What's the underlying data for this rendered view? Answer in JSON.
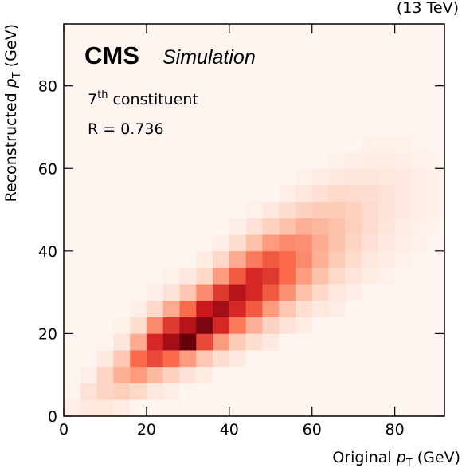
{
  "chart_data": {
    "type": "heatmap",
    "energy_label": "(13 TeV)",
    "experiment": "CMS",
    "experiment_note": "Simulation",
    "annotations": [
      {
        "base": "7",
        "sup": "th",
        "rest": " constituent"
      },
      {
        "base": "R = 0.736"
      }
    ],
    "x_label": {
      "pre": "Original ",
      "var": "p",
      "sub": "T",
      "post": " (GeV)"
    },
    "y_label": {
      "pre": "Reconstructed ",
      "var": "p",
      "sub": "T",
      "post": " (GeV)"
    },
    "xlim": [
      0,
      92
    ],
    "ylim": [
      0,
      95
    ],
    "xticks": [
      0,
      20,
      40,
      60,
      80
    ],
    "yticks": [
      0,
      20,
      40,
      60,
      80
    ],
    "colormap": [
      "#fff5f0",
      "#fcbba1",
      "#fb6a4a",
      "#cb181d",
      "#67000d"
    ],
    "x_bins": [
      0,
      4,
      8,
      12,
      16,
      20,
      24,
      28,
      32,
      36,
      40,
      44,
      48,
      52,
      56,
      60,
      64,
      68,
      72,
      76,
      80,
      84,
      88,
      92
    ],
    "y_bins": [
      0,
      4,
      8,
      12,
      16,
      20,
      24,
      28,
      32,
      36,
      40,
      44,
      48,
      52,
      56,
      60,
      64,
      68
    ],
    "z": [
      [
        3,
        5,
        6,
        4,
        0,
        0,
        0,
        0,
        0,
        0,
        0,
        0,
        0,
        0,
        0,
        0,
        0,
        0,
        0,
        0,
        0,
        0,
        0
      ],
      [
        1,
        8,
        14,
        16,
        12,
        6,
        3,
        0,
        0,
        0,
        0,
        0,
        0,
        0,
        0,
        0,
        0,
        0,
        0,
        0,
        0,
        0,
        0
      ],
      [
        0,
        3,
        14,
        28,
        35,
        25,
        15,
        8,
        4,
        0,
        0,
        0,
        0,
        0,
        0,
        0,
        0,
        0,
        0,
        0,
        0,
        0,
        0
      ],
      [
        0,
        0,
        5,
        20,
        50,
        60,
        50,
        35,
        20,
        10,
        5,
        0,
        0,
        0,
        0,
        0,
        0,
        0,
        0,
        0,
        0,
        0,
        0
      ],
      [
        0,
        0,
        1,
        7,
        30,
        70,
        85,
        100,
        60,
        35,
        18,
        10,
        5,
        0,
        0,
        0,
        0,
        0,
        0,
        0,
        0,
        0,
        0
      ],
      [
        0,
        0,
        0,
        2,
        10,
        40,
        65,
        80,
        95,
        70,
        45,
        28,
        15,
        8,
        4,
        0,
        0,
        0,
        0,
        0,
        0,
        0,
        0
      ],
      [
        0,
        0,
        0,
        0,
        3,
        12,
        30,
        50,
        75,
        85,
        70,
        55,
        35,
        20,
        10,
        6,
        3,
        0,
        0,
        0,
        0,
        0,
        0
      ],
      [
        0,
        0,
        0,
        0,
        0,
        3,
        8,
        20,
        40,
        65,
        80,
        70,
        55,
        38,
        22,
        12,
        6,
        3,
        0,
        0,
        0,
        0,
        0
      ],
      [
        0,
        0,
        0,
        0,
        0,
        0,
        2,
        5,
        12,
        35,
        55,
        70,
        65,
        50,
        35,
        22,
        12,
        7,
        4,
        2,
        0,
        0,
        0
      ],
      [
        0,
        0,
        0,
        0,
        0,
        0,
        0,
        0,
        4,
        12,
        30,
        45,
        55,
        50,
        40,
        28,
        18,
        11,
        6,
        4,
        2,
        0,
        0
      ],
      [
        0,
        0,
        0,
        0,
        0,
        0,
        0,
        0,
        0,
        3,
        10,
        22,
        35,
        40,
        38,
        30,
        22,
        14,
        9,
        5,
        3,
        2,
        0
      ],
      [
        0,
        0,
        0,
        0,
        0,
        0,
        0,
        0,
        0,
        0,
        3,
        8,
        15,
        22,
        28,
        26,
        22,
        16,
        11,
        7,
        4,
        2,
        1
      ],
      [
        0,
        0,
        0,
        0,
        0,
        0,
        0,
        0,
        0,
        0,
        0,
        2,
        5,
        10,
        15,
        18,
        18,
        15,
        11,
        8,
        5,
        3,
        2
      ],
      [
        0,
        0,
        0,
        0,
        0,
        0,
        0,
        0,
        0,
        0,
        0,
        0,
        0,
        3,
        6,
        9,
        12,
        11,
        10,
        8,
        5,
        3,
        2
      ],
      [
        0,
        0,
        0,
        0,
        0,
        0,
        0,
        0,
        0,
        0,
        0,
        0,
        0,
        0,
        2,
        4,
        6,
        7,
        7,
        6,
        5,
        3,
        2
      ],
      [
        0,
        0,
        0,
        0,
        0,
        0,
        0,
        0,
        0,
        0,
        0,
        0,
        0,
        0,
        0,
        0,
        2,
        3,
        4,
        4,
        3,
        2,
        1
      ],
      [
        0,
        0,
        0,
        0,
        0,
        0,
        0,
        0,
        0,
        0,
        0,
        0,
        0,
        0,
        0,
        0,
        0,
        0,
        2,
        2,
        2,
        1,
        0
      ]
    ]
  }
}
